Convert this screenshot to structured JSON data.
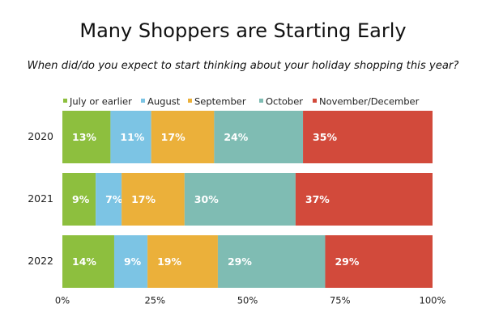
{
  "chart_data": {
    "type": "bar",
    "orientation": "horizontal",
    "stacked": true,
    "title": "Many Shoppers are Starting Early",
    "subtitle": "When did/do you expect to start thinking about your holiday shopping this year?",
    "categories": [
      "2020",
      "2021",
      "2022"
    ],
    "series": [
      {
        "name": "July or earlier",
        "color": "#8dbf3e",
        "values": [
          13,
          9,
          14
        ]
      },
      {
        "name": "August",
        "color": "#7cc4e4",
        "values": [
          11,
          7,
          9
        ]
      },
      {
        "name": "September",
        "color": "#ebb03a",
        "values": [
          17,
          17,
          19
        ]
      },
      {
        "name": "October",
        "color": "#7fbcb3",
        "values": [
          24,
          30,
          29
        ]
      },
      {
        "name": "November/December",
        "color": "#d24a3b",
        "values": [
          35,
          37,
          29
        ]
      }
    ],
    "xlim": [
      0,
      100
    ],
    "x_ticks": [
      "0%",
      "25%",
      "50%",
      "75%",
      "100%"
    ],
    "value_suffix": "%",
    "legend_position": "top",
    "grid": false
  }
}
